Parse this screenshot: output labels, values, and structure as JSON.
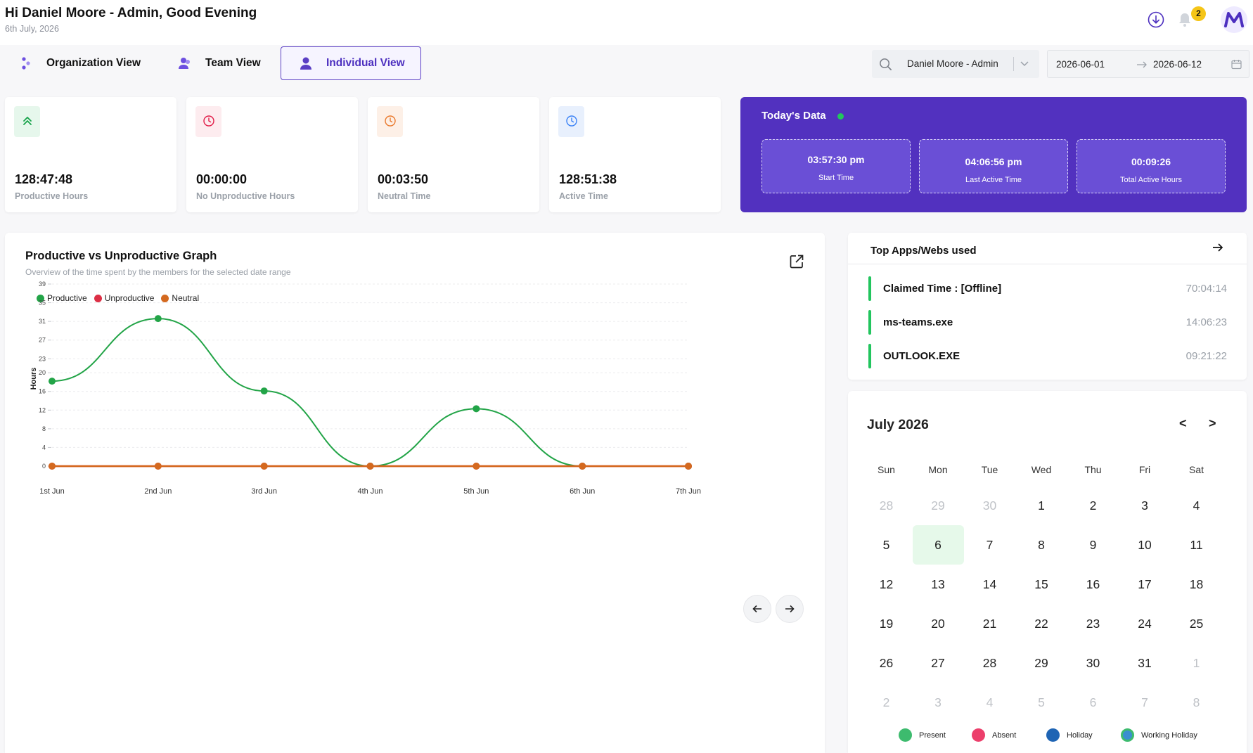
{
  "header": {
    "greeting": "Hi Daniel Moore - Admin, Good Evening",
    "date": "6th July, 2026",
    "notification_count": "2"
  },
  "tabs": [
    {
      "label": "Organization View",
      "icon": "organization-icon"
    },
    {
      "label": "Team View",
      "icon": "team-icon"
    },
    {
      "label": "Individual View",
      "icon": "user-icon",
      "active": true
    }
  ],
  "filters": {
    "user": "Daniel Moore - Admin",
    "date_from": "2026-06-01",
    "date_to": "2026-06-12"
  },
  "stats": [
    {
      "value": "128:47:48",
      "label": "Productive Hours",
      "icon": "double-chevron-up-icon",
      "icon_color": "#16a34a",
      "bg": "#e6f7ec"
    },
    {
      "value": "00:00:00",
      "label": "No Unproductive Hours",
      "icon": "clock-icon",
      "icon_color": "#e11d48",
      "bg": "#fdecef"
    },
    {
      "value": "00:03:50",
      "label": "Neutral Time",
      "icon": "clock-icon",
      "icon_color": "#ea7a2e",
      "bg": "#fdf0e7"
    },
    {
      "value": "128:51:38",
      "label": "Active Time",
      "icon": "clock-icon",
      "icon_color": "#3b82f6",
      "bg": "#e8f0fd"
    }
  ],
  "today": {
    "title": "Today's Data",
    "items": [
      {
        "value": "03:57:30 pm",
        "label": "Start Time"
      },
      {
        "value": "04:06:56 pm",
        "label": "Last Active Time"
      },
      {
        "value": "00:09:26",
        "label": "Total Active Hours"
      }
    ]
  },
  "graph": {
    "title": "Productive vs Unproductive Graph",
    "subtitle": "Overview of the time spent by the members for the selected date range"
  },
  "chart_data": {
    "type": "line",
    "x": [
      "1st Jun",
      "2nd Jun",
      "3rd Jun",
      "4th Jun",
      "5th Jun",
      "6th Jun",
      "7th Jun"
    ],
    "series": [
      {
        "name": "Productive",
        "color": "#22a447",
        "values": [
          18.2,
          31.6,
          16.1,
          0,
          12.3,
          0,
          0
        ]
      },
      {
        "name": "Unproductive",
        "color": "#dc2f45",
        "values": [
          0,
          0,
          0,
          0,
          0,
          0,
          0
        ]
      },
      {
        "name": "Neutral",
        "color": "#d4691f",
        "values": [
          0,
          0,
          0,
          0,
          0,
          0,
          0
        ]
      }
    ],
    "yticks": [
      0,
      4,
      8,
      12,
      16,
      20,
      23,
      27,
      31,
      35,
      39
    ],
    "ylabel": "Hours",
    "ylim": [
      0,
      39
    ],
    "legend": "top-left",
    "grid": true
  },
  "apps": {
    "title": "Top Apps/Webs used",
    "items": [
      {
        "name": "Claimed Time : [Offline]",
        "time": "70:04:14"
      },
      {
        "name": "ms-teams.exe",
        "time": "14:06:23"
      },
      {
        "name": "OUTLOOK.EXE",
        "time": "09:21:22"
      }
    ]
  },
  "calendar": {
    "title": "July 2026",
    "prev": "<",
    "next": ">",
    "weekdays": [
      "Sun",
      "Mon",
      "Tue",
      "Wed",
      "Thu",
      "Fri",
      "Sat"
    ],
    "weeks": [
      [
        {
          "d": "28",
          "m": true
        },
        {
          "d": "29",
          "m": true
        },
        {
          "d": "30",
          "m": true
        },
        {
          "d": "1"
        },
        {
          "d": "2"
        },
        {
          "d": "3"
        },
        {
          "d": "4"
        }
      ],
      [
        {
          "d": "5"
        },
        {
          "d": "6",
          "t": true
        },
        {
          "d": "7"
        },
        {
          "d": "8"
        },
        {
          "d": "9"
        },
        {
          "d": "10"
        },
        {
          "d": "11"
        }
      ],
      [
        {
          "d": "12"
        },
        {
          "d": "13"
        },
        {
          "d": "14"
        },
        {
          "d": "15"
        },
        {
          "d": "16"
        },
        {
          "d": "17"
        },
        {
          "d": "18"
        }
      ],
      [
        {
          "d": "19"
        },
        {
          "d": "20"
        },
        {
          "d": "21"
        },
        {
          "d": "22"
        },
        {
          "d": "23"
        },
        {
          "d": "24"
        },
        {
          "d": "25"
        }
      ],
      [
        {
          "d": "26"
        },
        {
          "d": "27"
        },
        {
          "d": "28"
        },
        {
          "d": "29"
        },
        {
          "d": "30"
        },
        {
          "d": "31"
        },
        {
          "d": "1",
          "m": true
        }
      ],
      [
        {
          "d": "2",
          "m": true
        },
        {
          "d": "3",
          "m": true
        },
        {
          "d": "4",
          "m": true
        },
        {
          "d": "5",
          "m": true
        },
        {
          "d": "6",
          "m": true
        },
        {
          "d": "7",
          "m": true
        },
        {
          "d": "8",
          "m": true
        }
      ]
    ],
    "legend": [
      {
        "label": "Present",
        "color": "#3dbb6e"
      },
      {
        "label": "Absent",
        "color": "#ec3f6b"
      },
      {
        "label": "Holiday",
        "color": "#1e64b4"
      },
      {
        "label": "Working Holiday",
        "color": "#3a8fd0"
      }
    ]
  }
}
